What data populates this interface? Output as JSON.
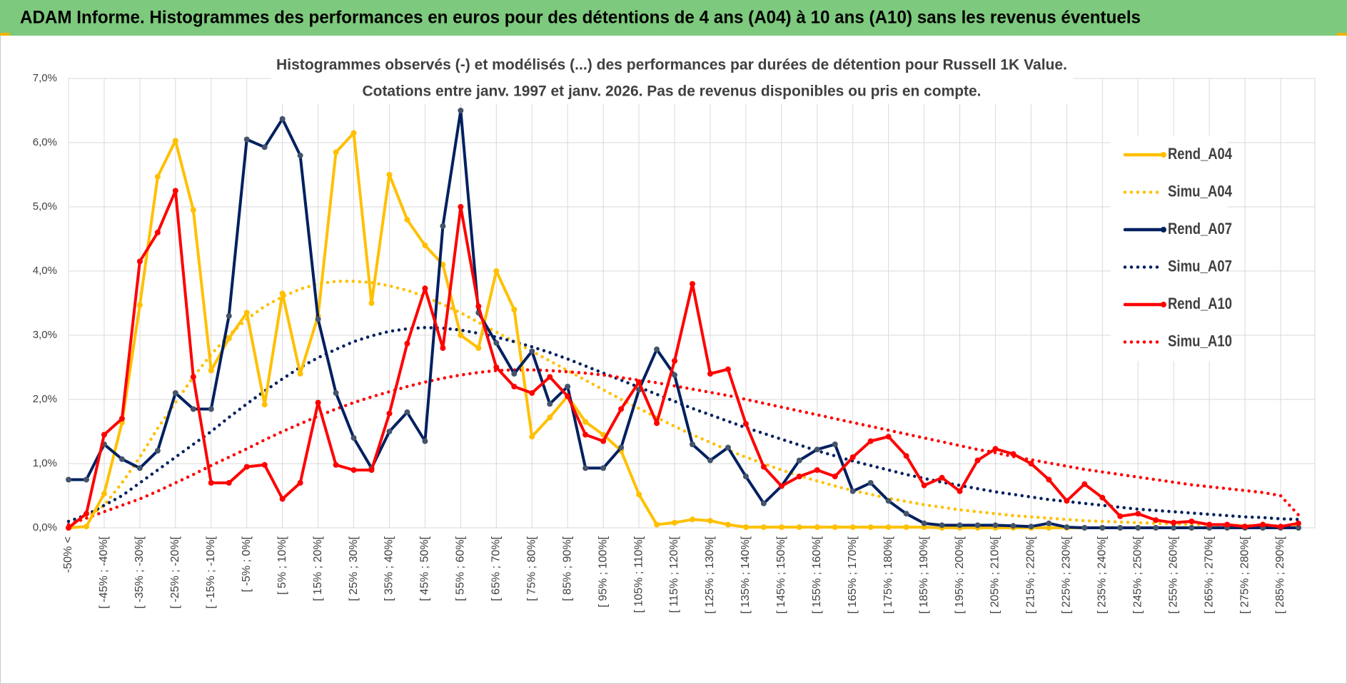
{
  "header_title": "ADAM Informe. Histogrammes des performances en euros pour des détentions de 4 ans (A04) à 10 ans (A10) sans les revenus éventuels",
  "chart_data": {
    "type": "line",
    "title": [
      "Histogrammes observés (-) et modélisés (...) des performances par durées de détention pour Russell 1K Value.",
      "Cotations entre janv. 1997 et janv. 2026. Pas de revenus disponibles ou pris en compte."
    ],
    "categories": [
      "-50% <",
      null,
      "[ -45% ; -40%[",
      null,
      "[ -35% ; -30%[",
      null,
      "[ -25% ; -20%[",
      null,
      "[ -15% ; -10%[",
      null,
      "[ -5% ; 0%[",
      null,
      "[ 5% ; 10%[",
      null,
      "[ 15% ; 20%[",
      null,
      "[ 25% ; 30%[",
      null,
      "[ 35% ; 40%[",
      null,
      "[ 45% ; 50%[",
      null,
      "[ 55% ; 60%[",
      null,
      "[ 65% ; 70%[",
      null,
      "[ 75% ; 80%[",
      null,
      "[ 85% ; 90%[",
      null,
      "[ 95% ; 100%[",
      null,
      "[ 105% ; 110%[",
      null,
      "[ 115% ; 120%[",
      null,
      "[ 125% ; 130%[",
      null,
      "[ 135% ; 140%[",
      null,
      "[ 145% ; 150%[",
      null,
      "[ 155% ; 160%[",
      null,
      "[ 165% ; 170%[",
      null,
      "[ 175% ; 180%[",
      null,
      "[ 185% ; 190%[",
      null,
      "[ 195% ; 200%[",
      null,
      "[ 205% ; 210%[",
      null,
      "[ 215% ; 220%[",
      null,
      "[ 225% ; 230%[",
      null,
      "[ 235% ; 240%[",
      null,
      "[ 245% ; 250%[",
      null,
      "[ 255% ; 260%[",
      null,
      "[ 265% ; 270%[",
      null,
      "[ 275% ; 280%[",
      null,
      "[ 285% ; 290%[",
      null
    ],
    "ylim": [
      0,
      7
    ],
    "yticks": [
      {
        "value": 0,
        "label": "0,0%"
      },
      {
        "value": 1,
        "label": "1,0%"
      },
      {
        "value": 2,
        "label": "2,0%"
      },
      {
        "value": 3,
        "label": "3,0%"
      },
      {
        "value": 4,
        "label": "4,0%"
      },
      {
        "value": 5,
        "label": "5,0%"
      },
      {
        "value": 6,
        "label": "6,0%"
      },
      {
        "value": 7,
        "label": "7,0%"
      }
    ],
    "grid": true,
    "legend": "right",
    "series": [
      {
        "name": "Rend_A04",
        "color": "#FFC000",
        "dash": "solid",
        "values": [
          0,
          0.02,
          0.53,
          1.64,
          3.47,
          5.47,
          6.03,
          4.95,
          2.45,
          2.95,
          3.35,
          1.92,
          3.65,
          2.4,
          3.3,
          5.85,
          6.15,
          3.5,
          5.5,
          4.8,
          4.4,
          4.1,
          3.0,
          2.8,
          4.0,
          3.4,
          1.42,
          1.72,
          2.05,
          1.65,
          1.45,
          1.2,
          0.52,
          0.05,
          0.08,
          0.13,
          0.11,
          0.05,
          0.01,
          0.01,
          0.01,
          0.01,
          0.01,
          0.01,
          0.01,
          0.01,
          0.01,
          0.01,
          0.01,
          0,
          0,
          0,
          0,
          0,
          0,
          0,
          0,
          0,
          0,
          0,
          0,
          0,
          0,
          0,
          0,
          0,
          0,
          0,
          0,
          0
        ]
      },
      {
        "name": "Simu_A04",
        "color": "#FFC000",
        "dash": "dotted",
        "values": [
          0.05,
          0.15,
          0.35,
          0.7,
          1.1,
          1.55,
          1.95,
          2.35,
          2.7,
          3.0,
          3.25,
          3.45,
          3.6,
          3.72,
          3.8,
          3.84,
          3.84,
          3.82,
          3.77,
          3.7,
          3.6,
          3.48,
          3.35,
          3.2,
          3.05,
          2.9,
          2.75,
          2.6,
          2.45,
          2.3,
          2.15,
          2.0,
          1.86,
          1.72,
          1.58,
          1.45,
          1.33,
          1.21,
          1.1,
          1.0,
          0.9,
          0.81,
          0.73,
          0.65,
          0.58,
          0.52,
          0.46,
          0.41,
          0.36,
          0.32,
          0.28,
          0.25,
          0.22,
          0.19,
          0.17,
          0.15,
          0.13,
          0.11,
          0.1,
          0.09,
          0.08,
          0.07,
          0.06,
          0.05,
          0.05,
          0.04,
          0.04,
          0.03,
          0.03,
          0.02
        ]
      },
      {
        "name": "Rend_A07",
        "color": "#002060",
        "dash": "solid",
        "values": [
          0.75,
          0.75,
          1.3,
          1.07,
          0.93,
          1.2,
          2.1,
          1.85,
          1.85,
          3.3,
          6.05,
          5.93,
          6.37,
          5.8,
          3.25,
          2.1,
          1.4,
          0.93,
          1.5,
          1.8,
          1.35,
          4.7,
          6.5,
          3.35,
          2.88,
          2.4,
          2.75,
          1.93,
          2.2,
          0.93,
          0.93,
          1.25,
          2.15,
          2.78,
          2.38,
          1.3,
          1.05,
          1.25,
          0.8,
          0.38,
          0.65,
          1.05,
          1.22,
          1.3,
          0.57,
          0.7,
          0.42,
          0.22,
          0.07,
          0.04,
          0.04,
          0.04,
          0.04,
          0.03,
          0.02,
          0.07,
          0.01,
          0,
          0,
          0,
          0,
          0,
          0,
          0,
          0,
          0,
          0,
          0,
          0,
          0
        ]
      },
      {
        "name": "Simu_A07",
        "color": "#002060",
        "dash": "dotted",
        "values": [
          0.1,
          0.2,
          0.35,
          0.5,
          0.7,
          0.9,
          1.1,
          1.3,
          1.5,
          1.72,
          1.93,
          2.13,
          2.32,
          2.5,
          2.65,
          2.78,
          2.9,
          2.99,
          3.06,
          3.1,
          3.12,
          3.11,
          3.08,
          3.03,
          2.97,
          2.9,
          2.82,
          2.73,
          2.63,
          2.52,
          2.41,
          2.3,
          2.19,
          2.08,
          1.97,
          1.86,
          1.76,
          1.66,
          1.56,
          1.47,
          1.38,
          1.29,
          1.2,
          1.12,
          1.04,
          0.97,
          0.9,
          0.83,
          0.77,
          0.71,
          0.66,
          0.61,
          0.56,
          0.52,
          0.48,
          0.44,
          0.41,
          0.38,
          0.35,
          0.32,
          0.29,
          0.27,
          0.25,
          0.23,
          0.21,
          0.19,
          0.17,
          0.16,
          0.14,
          0.13
        ]
      },
      {
        "name": "Rend_A10",
        "color": "#FF0000",
        "dash": "solid",
        "values": [
          0,
          0.22,
          1.45,
          1.7,
          4.15,
          4.6,
          5.25,
          2.35,
          0.7,
          0.7,
          0.95,
          0.98,
          0.45,
          0.7,
          1.95,
          0.98,
          0.9,
          0.9,
          1.78,
          2.87,
          3.73,
          2.8,
          5.0,
          3.45,
          2.5,
          2.2,
          2.1,
          2.35,
          2.05,
          1.45,
          1.35,
          1.85,
          2.27,
          1.63,
          2.6,
          3.8,
          2.4,
          2.47,
          1.62,
          0.95,
          0.65,
          0.8,
          0.9,
          0.8,
          1.1,
          1.35,
          1.42,
          1.12,
          0.66,
          0.78,
          0.57,
          1.05,
          1.23,
          1.15,
          1.0,
          0.75,
          0.42,
          0.68,
          0.47,
          0.18,
          0.22,
          0.12,
          0.08,
          0.1,
          0.05,
          0.05,
          0.02,
          0.05,
          0.02,
          0.07
        ]
      },
      {
        "name": "Simu_A10",
        "color": "#FF0000",
        "dash": "dotted",
        "values": [
          0.05,
          0.15,
          0.25,
          0.35,
          0.45,
          0.57,
          0.7,
          0.83,
          0.97,
          1.1,
          1.23,
          1.37,
          1.5,
          1.62,
          1.74,
          1.85,
          1.95,
          2.04,
          2.12,
          2.2,
          2.27,
          2.33,
          2.38,
          2.42,
          2.45,
          2.46,
          2.46,
          2.45,
          2.43,
          2.41,
          2.38,
          2.34,
          2.3,
          2.26,
          2.21,
          2.16,
          2.11,
          2.06,
          2.0,
          1.94,
          1.88,
          1.82,
          1.76,
          1.7,
          1.64,
          1.58,
          1.52,
          1.46,
          1.4,
          1.34,
          1.28,
          1.22,
          1.17,
          1.11,
          1.06,
          1.01,
          0.96,
          0.91,
          0.87,
          0.83,
          0.79,
          0.75,
          0.71,
          0.67,
          0.64,
          0.61,
          0.58,
          0.55,
          0.5,
          0.2
        ]
      }
    ]
  }
}
